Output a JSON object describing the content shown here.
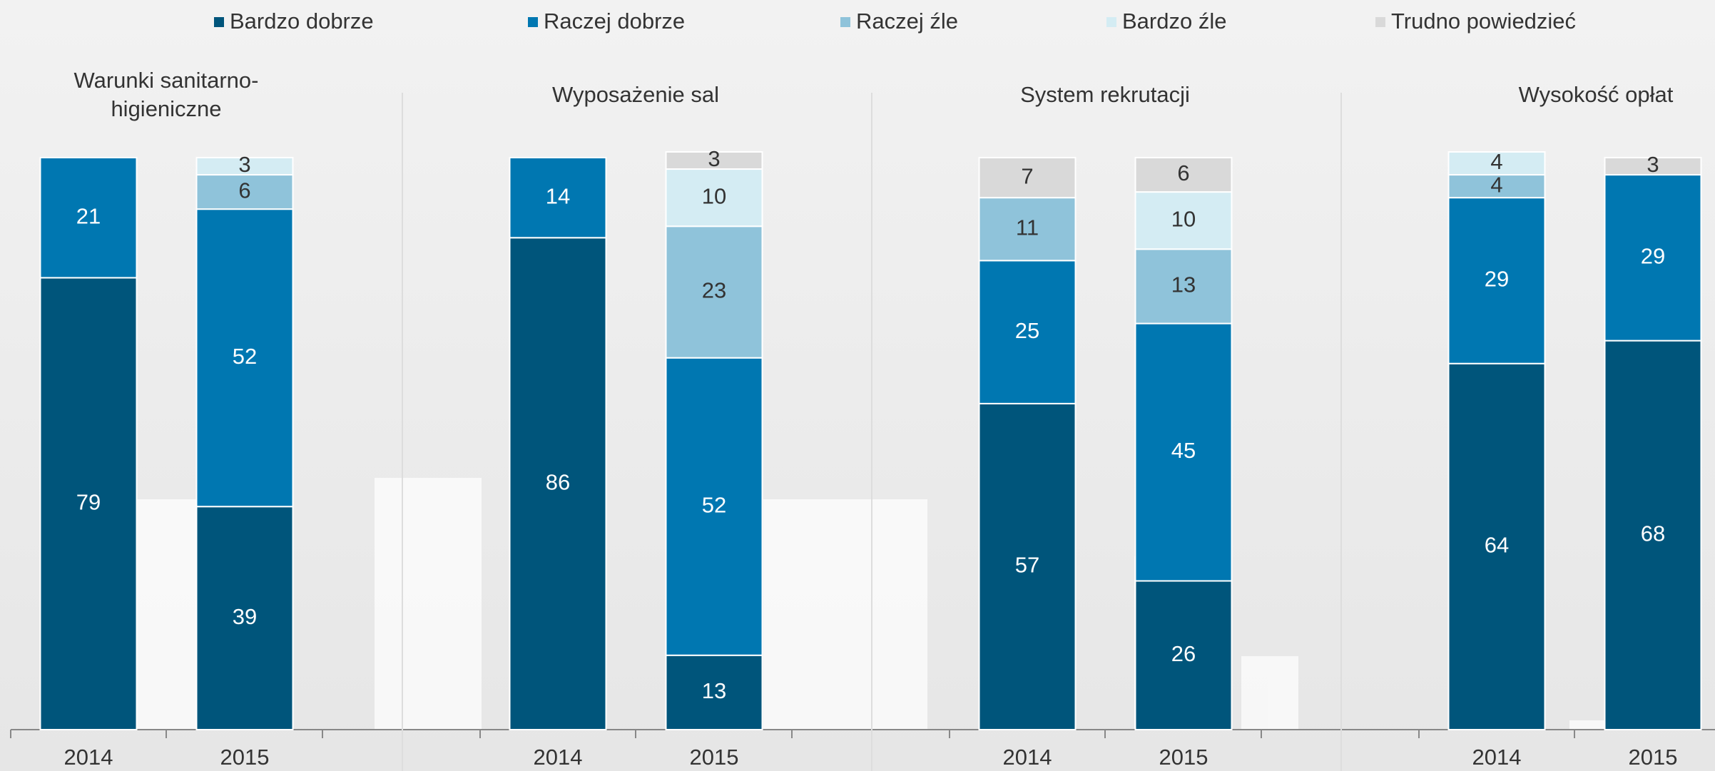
{
  "chart_data": [
    {
      "type": "bar",
      "stacked": true,
      "title": "Warunki sanitarno-higieniczne",
      "categories": [
        "2014",
        "2015"
      ],
      "ylim": [
        0,
        100
      ],
      "series": [
        {
          "name": "Bardzo dobrze",
          "color": "#00557b",
          "values": [
            79,
            39
          ]
        },
        {
          "name": "Raczej dobrze",
          "color": "#0077b1",
          "values": [
            21,
            52
          ]
        },
        {
          "name": "Raczej źle",
          "color": "#8fc3da",
          "values": [
            null,
            6
          ]
        },
        {
          "name": "Bardzo źle",
          "color": "#d4ecf3",
          "values": [
            null,
            3
          ]
        },
        {
          "name": "Trudno powiedzieć",
          "color": "#d9d9d9",
          "values": [
            null,
            null
          ]
        }
      ]
    },
    {
      "type": "bar",
      "stacked": true,
      "title": "Wyposażenie sal",
      "categories": [
        "2014",
        "2015"
      ],
      "ylim": [
        0,
        100
      ],
      "series": [
        {
          "name": "Bardzo dobrze",
          "color": "#00557b",
          "values": [
            86,
            13
          ]
        },
        {
          "name": "Raczej dobrze",
          "color": "#0077b1",
          "values": [
            14,
            52
          ]
        },
        {
          "name": "Raczej źle",
          "color": "#8fc3da",
          "values": [
            null,
            23
          ]
        },
        {
          "name": "Bardzo źle",
          "color": "#d4ecf3",
          "values": [
            null,
            10
          ]
        },
        {
          "name": "Trudno powiedzieć",
          "color": "#d9d9d9",
          "values": [
            null,
            3
          ]
        }
      ]
    },
    {
      "type": "bar",
      "stacked": true,
      "title": "System rekrutacji",
      "categories": [
        "2014",
        "2015"
      ],
      "ylim": [
        0,
        100
      ],
      "series": [
        {
          "name": "Bardzo dobrze",
          "color": "#00557b",
          "values": [
            57,
            26
          ]
        },
        {
          "name": "Raczej dobrze",
          "color": "#0077b1",
          "values": [
            25,
            45
          ]
        },
        {
          "name": "Raczej źle",
          "color": "#8fc3da",
          "values": [
            11,
            13
          ]
        },
        {
          "name": "Bardzo źle",
          "color": "#d4ecf3",
          "values": [
            null,
            10
          ]
        },
        {
          "name": "Trudno powiedzieć",
          "color": "#d9d9d9",
          "values": [
            7,
            6
          ]
        }
      ]
    },
    {
      "type": "bar",
      "stacked": true,
      "title": "Wysokość opłat",
      "categories": [
        "2014",
        "2015"
      ],
      "ylim": [
        0,
        100
      ],
      "series": [
        {
          "name": "Bardzo dobrze",
          "color": "#00557b",
          "values": [
            64,
            68
          ]
        },
        {
          "name": "Raczej dobrze",
          "color": "#0077b1",
          "values": [
            29,
            29
          ]
        },
        {
          "name": "Raczej źle",
          "color": "#8fc3da",
          "values": [
            4,
            null
          ]
        },
        {
          "name": "Bardzo źle",
          "color": "#d4ecf3",
          "values": [
            4,
            null
          ]
        },
        {
          "name": "Trudno powiedzieć",
          "color": "#d9d9d9",
          "values": [
            null,
            3
          ]
        }
      ]
    }
  ]
}
